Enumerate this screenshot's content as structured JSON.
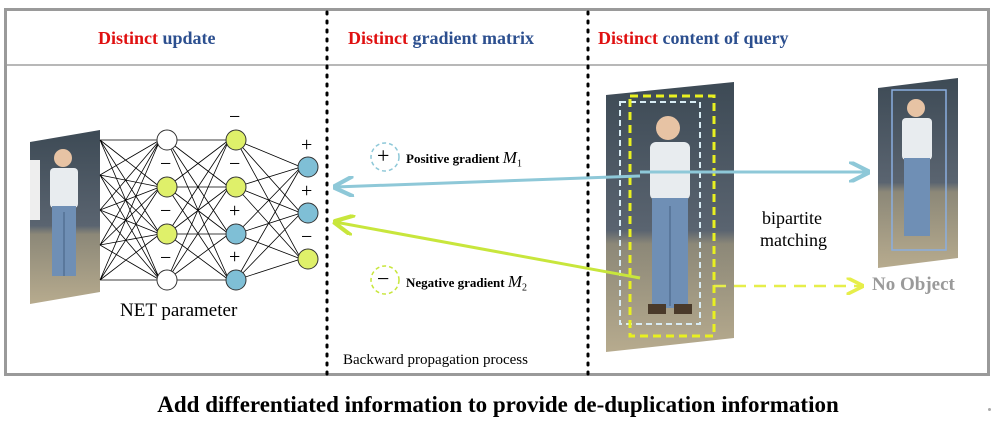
{
  "header": {
    "left": {
      "emph": "Distinct",
      "rest": "update"
    },
    "middle": {
      "emph": "Distinct",
      "rest": "gradient matrix"
    },
    "right": {
      "emph": "Distinct",
      "rest": "content of query"
    }
  },
  "left_panel": {
    "net_label": "NET parameter",
    "signs_layer2": [
      "−",
      "−",
      "−"
    ],
    "signs_layer3": [
      "−",
      "−",
      "+",
      "+"
    ],
    "signs_output": [
      "+",
      "+",
      "−"
    ]
  },
  "middle_panel": {
    "positive": {
      "symbol": "+",
      "label": "Positive gradient",
      "var": "M",
      "sub": "1"
    },
    "negative": {
      "symbol": "−",
      "label": "Negative gradient",
      "var": "M",
      "sub": "2"
    },
    "process_label": "Backward propagation process"
  },
  "right_panel": {
    "matching_line1": "bipartite",
    "matching_line2": "matching",
    "no_object": "No Object"
  },
  "footer": "Add differentiated information to provide de-duplication information",
  "colors": {
    "positive": "#8ec8d8",
    "negative": "#c8e63c",
    "node_blue": "#7fbfd6",
    "node_yellow": "#dff06a",
    "emphasis_red": "#e01010",
    "header_blue": "#2c4f8f"
  }
}
